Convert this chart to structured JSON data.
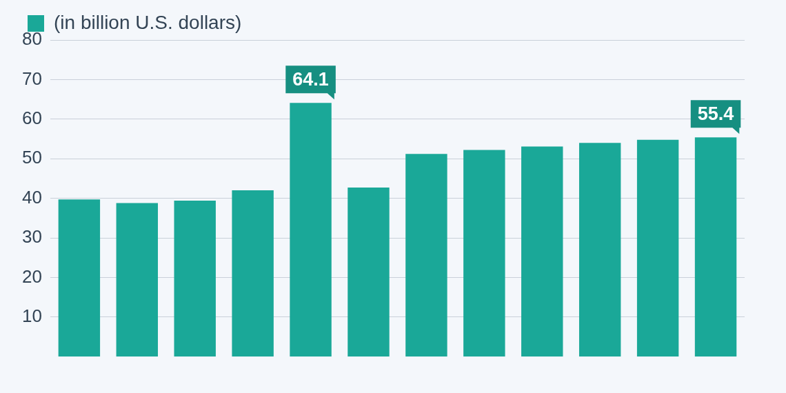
{
  "chart_data": {
    "type": "bar",
    "categories": [
      null,
      null,
      null,
      null,
      null,
      null,
      null,
      null,
      null,
      null,
      null,
      null
    ],
    "series": [
      {
        "name": "(in billion U.S. dollars)",
        "color": "#1aa898",
        "values": [
          39.7,
          38.8,
          39.4,
          42.0,
          64.1,
          42.7,
          51.2,
          52.2,
          53.1,
          54.0,
          54.8,
          55.4
        ],
        "value_labels": [
          null,
          null,
          null,
          null,
          "64.1",
          null,
          null,
          null,
          null,
          null,
          null,
          "55.4"
        ]
      }
    ],
    "ylim": [
      0,
      80
    ],
    "yticks": [
      10,
      20,
      30,
      40,
      50,
      60,
      70,
      80
    ],
    "grid": "y",
    "legend": "top left"
  }
}
